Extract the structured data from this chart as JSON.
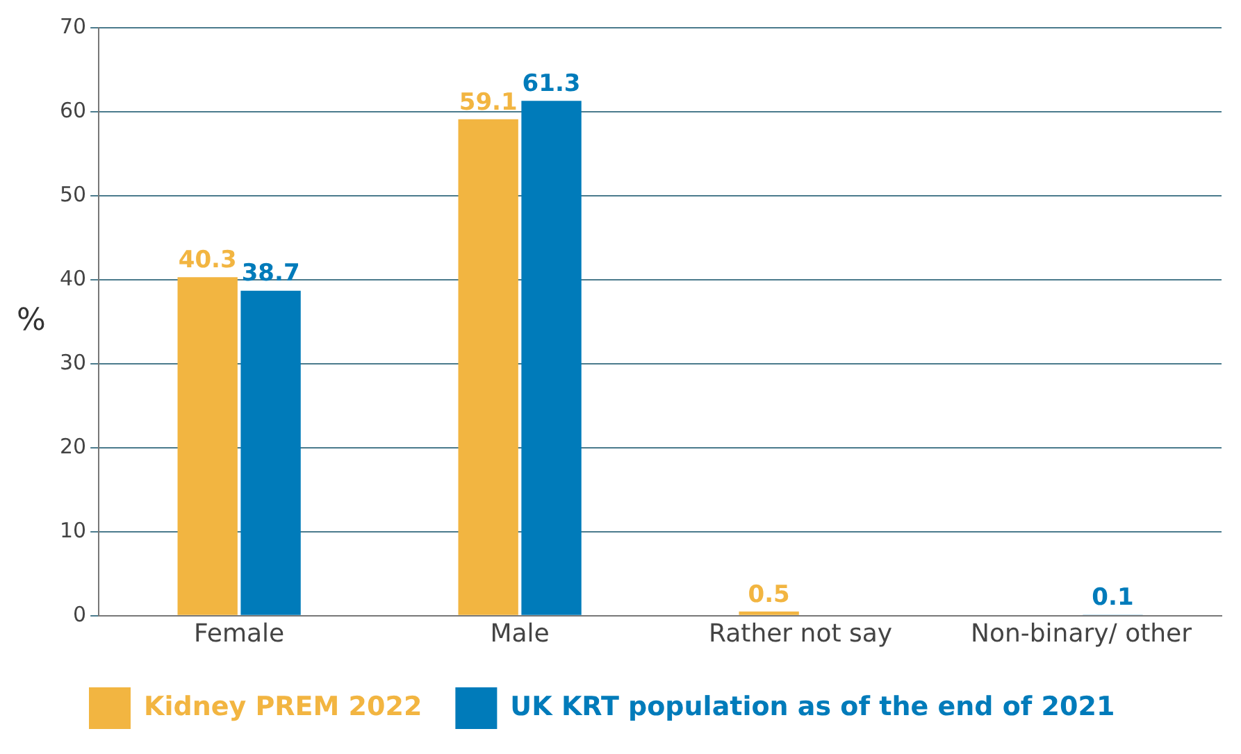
{
  "chart_data": {
    "type": "bar",
    "ylabel": "%",
    "categories": [
      "Female",
      "Male",
      "Rather not say",
      "Non-binary/ other"
    ],
    "series": [
      {
        "name": "Kidney PREM 2022",
        "color": "#f2b541",
        "values": [
          40.3,
          59.1,
          0.5,
          null
        ]
      },
      {
        "name": "UK KRT population as of the end of 2021",
        "color": "#007bba",
        "values": [
          38.7,
          61.3,
          null,
          0.1
        ]
      }
    ],
    "ylim": [
      0,
      70
    ],
    "yticks": [
      0,
      10,
      20,
      30,
      40,
      50,
      60,
      70
    ],
    "grid": "y",
    "legend": "bottom left",
    "data_labels": true
  }
}
